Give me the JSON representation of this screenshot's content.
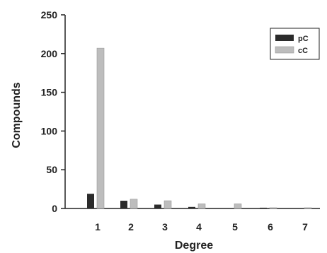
{
  "chart_data": {
    "type": "bar",
    "xlabel": "Degree",
    "ylabel": "Compounds",
    "categories": [
      "1",
      "2",
      "3",
      "4",
      "5",
      "6",
      "7"
    ],
    "ylim": [
      0,
      250
    ],
    "yticks": [
      "0",
      "50",
      "100",
      "150",
      "200",
      "250"
    ],
    "series": [
      {
        "name": "pC",
        "values": [
          19,
          10,
          5,
          2,
          0,
          1,
          0
        ],
        "color": "#2b2b2b"
      },
      {
        "name": "cC",
        "values": [
          207,
          12,
          10,
          6,
          6,
          1,
          1
        ],
        "color": "#bdbdbd"
      }
    ],
    "legend_position": "top-right",
    "grid": false
  }
}
